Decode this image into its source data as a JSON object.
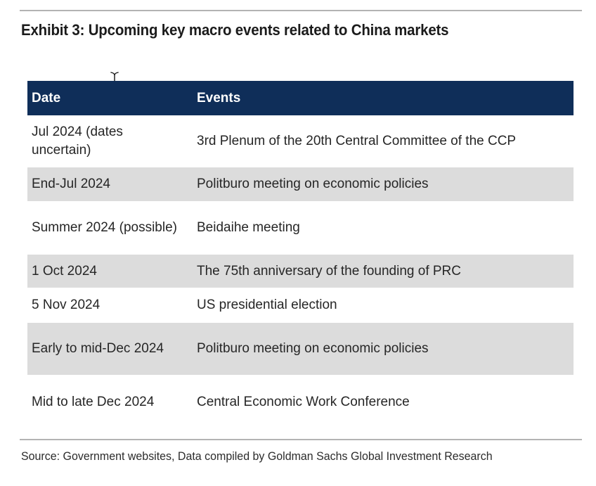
{
  "title": "Exhibit 3: Upcoming key macro events related to China markets",
  "table": {
    "headers": {
      "date": "Date",
      "events": "Events"
    },
    "rows": [
      {
        "date": "Jul 2024 (dates uncertain)",
        "event": "3rd Plenum of the 20th Central Committee of the CCP",
        "shaded": false
      },
      {
        "date": "End-Jul 2024",
        "event": "Politburo meeting on economic policies",
        "shaded": true
      },
      {
        "date": "Summer 2024 (possible)",
        "event": "Beidaihe meeting",
        "shaded": false
      },
      {
        "date": "1 Oct 2024",
        "event": "The 75th anniversary of the founding of PRC",
        "shaded": true
      },
      {
        "date": "5 Nov 2024",
        "event": "US presidential election",
        "shaded": false
      },
      {
        "date": "Early to mid-Dec 2024",
        "event": "Politburo meeting on economic policies",
        "shaded": true
      },
      {
        "date": "Mid to late Dec 2024",
        "event": "Central Economic Work Conference",
        "shaded": false
      }
    ]
  },
  "source": "Source: Government websites, Data compiled by Goldman Sachs Global Investment Research",
  "colors": {
    "header_background": "#0f2e59",
    "header_text": "#ffffff",
    "shaded_row": "#dcdcdc",
    "rule": "#b3b3b3"
  },
  "icons": {
    "cursor": "text-cursor-icon"
  }
}
